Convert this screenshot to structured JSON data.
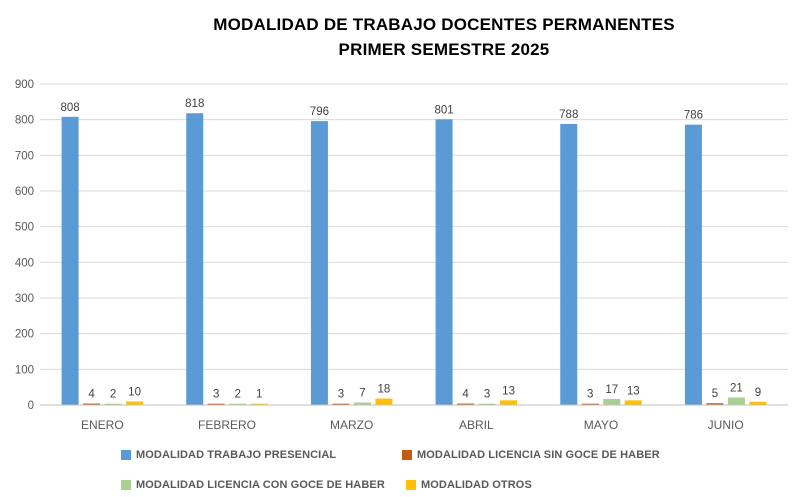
{
  "title": {
    "line1": "MODALIDAD DE TRABAJO DOCENTES PERMANENTES",
    "line2": "PRIMER SEMESTRE 2025"
  },
  "chart_data": {
    "type": "bar",
    "title": "MODALIDAD DE TRABAJO DOCENTES PERMANENTES PRIMER SEMESTRE 2025",
    "categories": [
      "ENERO",
      "FEBRERO",
      "MARZO",
      "ABRIL",
      "MAYO",
      "JUNIO"
    ],
    "series": [
      {
        "name": "MODALIDAD TRABAJO PRESENCIAL",
        "color": "#5B9BD5",
        "values": [
          808,
          818,
          796,
          801,
          788,
          786
        ]
      },
      {
        "name": "MODALIDAD LICENCIA SIN GOCE DE HABER",
        "color": "#C55A11",
        "values": [
          4,
          3,
          3,
          4,
          3,
          5
        ]
      },
      {
        "name": "MODALIDAD LICENCIA CON GOCE DE HABER",
        "color": "#A9D08E",
        "values": [
          2,
          2,
          7,
          3,
          17,
          21
        ]
      },
      {
        "name": "MODALIDAD OTROS",
        "color": "#FFC000",
        "values": [
          10,
          1,
          18,
          13,
          13,
          9
        ]
      }
    ],
    "xlabel": "",
    "ylabel": "",
    "ylim": [
      0,
      900
    ],
    "ytick_step": 100,
    "yticks": [
      0,
      100,
      200,
      300,
      400,
      500,
      600,
      700,
      800,
      900
    ],
    "grid": true,
    "data_labels": true,
    "legend_position": "bottom"
  },
  "style_colors": {
    "gridline": "#D9D9D9",
    "axis_line": "#BFBFBF",
    "tick_label": "#595959",
    "data_label": "#404040",
    "title_text": "#000000"
  }
}
